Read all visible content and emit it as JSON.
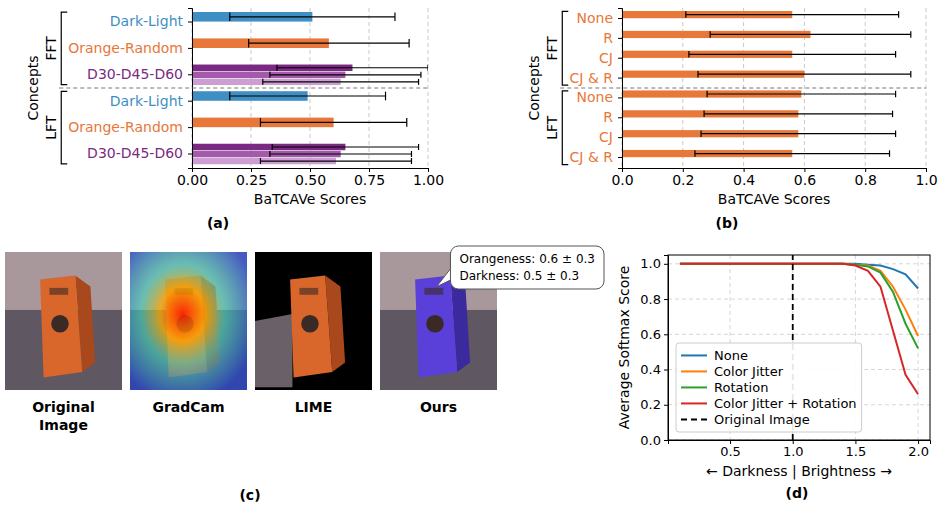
{
  "chart_data": [
    {
      "type": "bar",
      "orientation": "horizontal",
      "panel_label": "(a)",
      "x_label": "BaTCAVe Scores",
      "y_label": "Concepts",
      "xlim": [
        0,
        1
      ],
      "xticks": [
        {
          "value": 0,
          "label": "0.00"
        },
        0.25,
        {
          "value": 0.5,
          "label": "0.50"
        },
        0.75,
        {
          "value": 1,
          "label": "1.00"
        }
      ],
      "grid": true,
      "colors": [
        [
          "#3f8fc5",
          "#9cc7e3"
        ],
        [
          "#e8773a",
          "#f5b48c"
        ],
        [
          "#7b2a83",
          "#a35aab",
          "#cc9ed1"
        ]
      ],
      "groups": [
        {
          "name": "FFT",
          "categories": [
            "Dark-Light",
            "Orange-Random",
            "D30-D45-D60"
          ],
          "values": [
            [
              0.51,
              0
            ],
            [
              0.58,
              0
            ],
            [
              0.68,
              0.65,
              0.63
            ]
          ],
          "errors": [
            [
              0.35,
              0
            ],
            [
              0.34,
              0
            ],
            [
              0.32,
              0.32,
              0.33
            ]
          ]
        },
        {
          "name": "LFT",
          "categories": [
            "Dark-Light",
            "Orange-Random",
            "D30-D45-D60"
          ],
          "values": [
            [
              0.49,
              0
            ],
            [
              0.6,
              0
            ],
            [
              0.65,
              0.63,
              0.61
            ]
          ],
          "errors": [
            [
              0.33,
              0
            ],
            [
              0.31,
              0
            ],
            [
              0.31,
              0.3,
              0.32
            ]
          ]
        }
      ]
    },
    {
      "type": "bar",
      "orientation": "horizontal",
      "panel_label": "(b)",
      "x_label": "BaTCAVe Scores",
      "y_label": "Concepts",
      "xlim": [
        0,
        1
      ],
      "xticks": [
        {
          "value": 0,
          "label": "0.0"
        },
        0.2,
        0.4,
        0.6,
        0.8,
        {
          "value": 1,
          "label": "1.0"
        }
      ],
      "grid": true,
      "colors": [
        "#e8773a",
        "#f5b48c"
      ],
      "groups": [
        {
          "name": "FFT",
          "categories": [
            "None",
            "R",
            "CJ",
            "CJ & R"
          ],
          "values": [
            [
              0.56,
              0
            ],
            [
              0.62,
              0
            ],
            [
              0.56,
              0
            ],
            [
              0.6,
              0
            ]
          ],
          "errors": [
            [
              0.35,
              0
            ],
            [
              0.33,
              0
            ],
            [
              0.34,
              0
            ],
            [
              0.35,
              0
            ]
          ]
        },
        {
          "name": "LFT",
          "categories": [
            "None",
            "R",
            "CJ",
            "CJ & R"
          ],
          "values": [
            [
              0.59,
              0
            ],
            [
              0.58,
              0
            ],
            [
              0.58,
              0
            ],
            [
              0.56,
              0
            ]
          ],
          "errors": [
            [
              0.31,
              0
            ],
            [
              0.31,
              0
            ],
            [
              0.32,
              0
            ],
            [
              0.32,
              0
            ]
          ]
        }
      ]
    },
    {
      "type": "line",
      "panel_label": "(d)",
      "x_label": "← Darkness | Brightness →",
      "y_label": "Average Softmax Score",
      "x": [
        0.1,
        0.2,
        0.3,
        0.4,
        0.5,
        0.6,
        0.7,
        0.8,
        0.9,
        1.0,
        1.1,
        1.2,
        1.3,
        1.4,
        1.5,
        1.6,
        1.7,
        1.8,
        1.9,
        2.0
      ],
      "xlim": [
        0.005,
        2.095
      ],
      "xticks": [
        0.5,
        {
          "value": 1,
          "label": "1.0"
        },
        1.5,
        {
          "value": 2,
          "label": "2.0"
        }
      ],
      "ylim": [
        0,
        1.05
      ],
      "yticks": [
        {
          "value": 0,
          "label": "0.0"
        },
        0.2,
        0.4,
        0.6,
        0.8,
        {
          "value": 1,
          "label": "1.0"
        }
      ],
      "grid": true,
      "legend": "lower left",
      "series": [
        {
          "name": "None",
          "color": "#1f77b4",
          "line_style": "solid",
          "values": [
            1,
            1,
            1,
            1,
            1,
            1,
            1,
            1,
            1,
            1,
            1,
            1,
            1,
            1,
            1,
            0.995,
            0.99,
            0.97,
            0.94,
            0.86
          ]
        },
        {
          "name": "Color Jitter",
          "color": "#ff7f0e",
          "line_style": "solid",
          "values": [
            1,
            1,
            1,
            1,
            1,
            1,
            1,
            1,
            1,
            1,
            1,
            1,
            1,
            1,
            0.995,
            0.99,
            0.96,
            0.87,
            0.74,
            0.59
          ]
        },
        {
          "name": "Rotation",
          "color": "#2ca02c",
          "line_style": "solid",
          "values": [
            1,
            1,
            1,
            1,
            1,
            1,
            1,
            1,
            1,
            1,
            1,
            1,
            1,
            1,
            0.995,
            0.985,
            0.95,
            0.84,
            0.66,
            0.52
          ]
        },
        {
          "name": "Color Jitter + Rotation",
          "color": "#d62728",
          "line_style": "solid",
          "values": [
            1,
            1,
            1,
            1,
            1,
            1,
            1,
            1,
            1,
            1,
            1,
            1,
            1,
            1,
            0.99,
            0.96,
            0.87,
            0.62,
            0.37,
            0.26
          ]
        },
        {
          "name": "Original Image",
          "color": "#000000",
          "line_style": "dashed",
          "x": [
            1,
            1
          ],
          "values": [
            0,
            1.05
          ]
        }
      ]
    }
  ],
  "image_panel": {
    "panel_label": "(c)",
    "captions": [
      "Original Image",
      "GradCam",
      "LIME",
      "Ours"
    ],
    "callout": [
      "Orangeness: 0.6 ± 0.3",
      "Darkness: 0.5 ± 0.3"
    ]
  }
}
